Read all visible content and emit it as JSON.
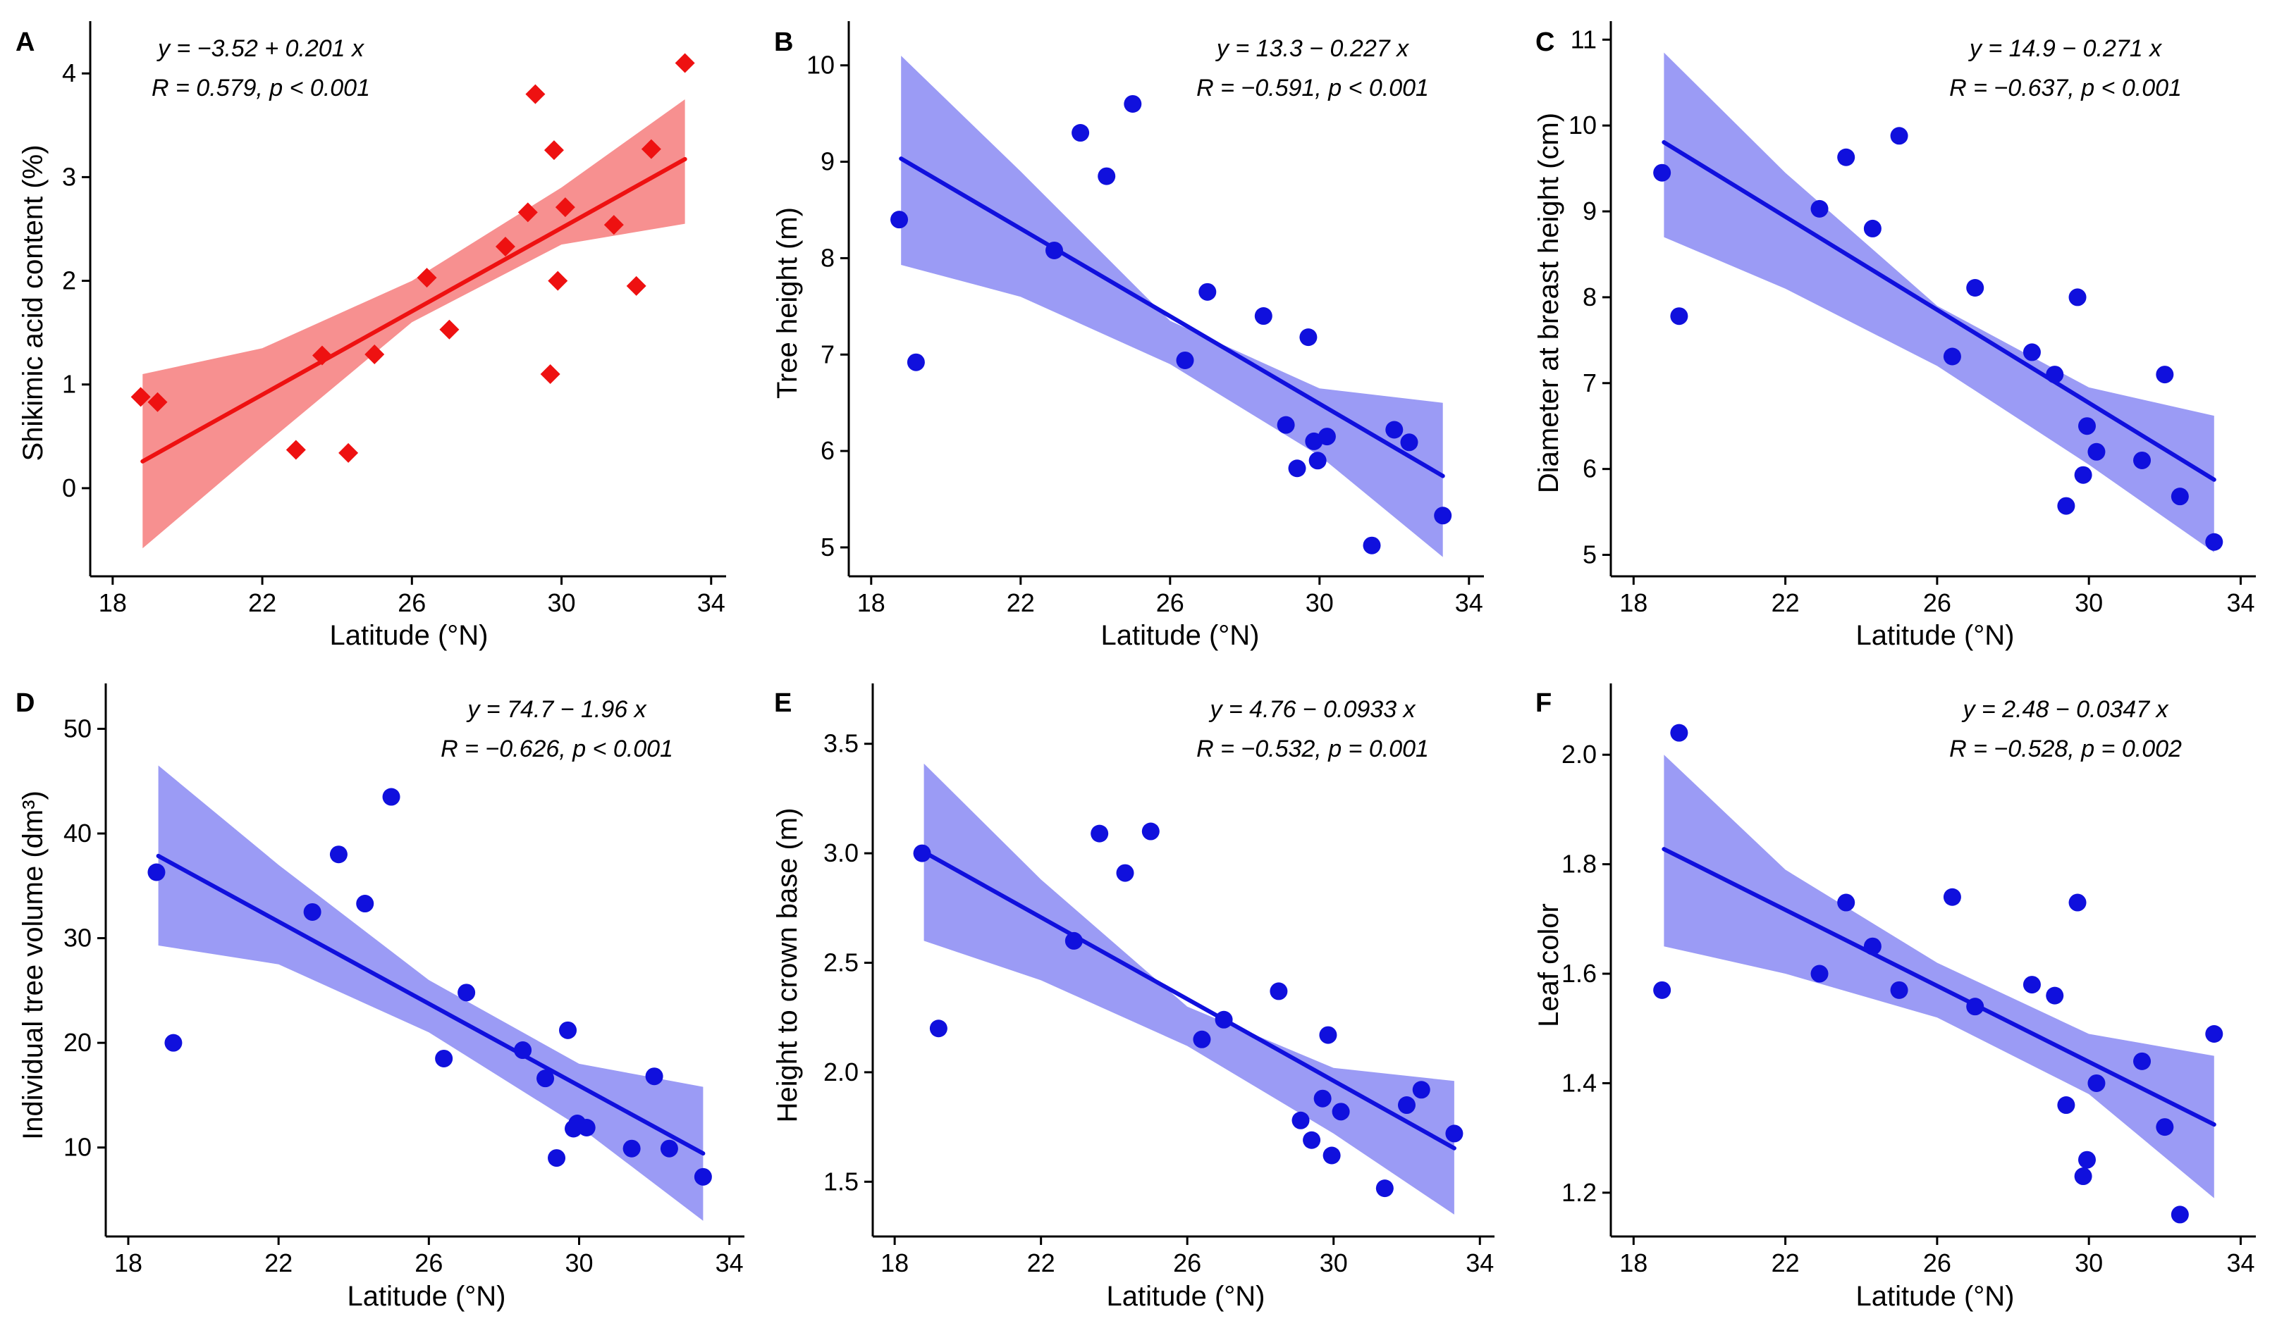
{
  "chart_data": [
    {
      "panel": "A",
      "type": "scatter",
      "xlabel": "Latitude (°N)",
      "ylabel": "Shikimic acid content (%)",
      "xlim": [
        17.4,
        34.4
      ],
      "ylim": [
        -0.85,
        4.45
      ],
      "xticks": [
        18,
        22,
        26,
        30,
        34
      ],
      "yticks": [
        0,
        1,
        2,
        3,
        4
      ],
      "point_shape": "diamond",
      "color": "#ee1111",
      "band_color": "#f79090",
      "fit": {
        "intercept": -3.52,
        "slope": 0.201
      },
      "ci_lower": [
        [
          18.8,
          -0.58
        ],
        [
          22,
          0.4
        ],
        [
          26,
          1.6
        ],
        [
          30,
          2.35
        ],
        [
          33.3,
          2.55
        ]
      ],
      "ci_upper": [
        [
          18.8,
          1.1
        ],
        [
          22,
          1.35
        ],
        [
          26,
          2.0
        ],
        [
          30,
          2.9
        ],
        [
          33.3,
          3.75
        ]
      ],
      "eq_line1": "y = −3.52 + 0.201 x",
      "eq_line2": "R = 0.579, p < 0.001",
      "points": [
        [
          18.75,
          0.88
        ],
        [
          19.2,
          0.83
        ],
        [
          22.9,
          0.37
        ],
        [
          23.6,
          1.28
        ],
        [
          24.3,
          0.34
        ],
        [
          25,
          1.29
        ],
        [
          26.4,
          2.03
        ],
        [
          27,
          1.53
        ],
        [
          28.5,
          2.33
        ],
        [
          29.1,
          2.66
        ],
        [
          29.3,
          3.8
        ],
        [
          29.7,
          1.1
        ],
        [
          29.8,
          3.26
        ],
        [
          29.9,
          2.0
        ],
        [
          30.1,
          2.71
        ],
        [
          31.4,
          2.54
        ],
        [
          32,
          1.95
        ],
        [
          32.4,
          3.27
        ],
        [
          33.3,
          4.1
        ]
      ]
    },
    {
      "panel": "B",
      "type": "scatter",
      "xlabel": "Latitude (°N)",
      "ylabel": "Tree height (m)",
      "xlim": [
        17.4,
        34.4
      ],
      "ylim": [
        4.7,
        10.4
      ],
      "xticks": [
        18,
        22,
        26,
        30,
        34
      ],
      "yticks": [
        5,
        6,
        7,
        8,
        9,
        10
      ],
      "point_shape": "circle",
      "color": "#1010dd",
      "band_color": "#9b9bf5",
      "fit": {
        "intercept": 13.3,
        "slope": -0.227
      },
      "ci_lower": [
        [
          18.8,
          7.93
        ],
        [
          22,
          7.6
        ],
        [
          26,
          6.9
        ],
        [
          30,
          5.95
        ],
        [
          33.3,
          4.9
        ]
      ],
      "ci_upper": [
        [
          18.8,
          10.1
        ],
        [
          22,
          8.9
        ],
        [
          26,
          7.35
        ],
        [
          30,
          6.65
        ],
        [
          33.3,
          6.5
        ]
      ],
      "eq_line1": "y = 13.3 − 0.227 x",
      "eq_line2": "R = −0.591, p < 0.001",
      "points": [
        [
          18.75,
          8.4
        ],
        [
          19.2,
          6.92
        ],
        [
          22.9,
          8.08
        ],
        [
          23.6,
          9.3
        ],
        [
          24.3,
          8.85
        ],
        [
          25,
          9.6
        ],
        [
          26.4,
          6.94
        ],
        [
          27,
          7.65
        ],
        [
          28.5,
          7.4
        ],
        [
          29.1,
          6.27
        ],
        [
          29.4,
          5.82
        ],
        [
          29.7,
          7.18
        ],
        [
          29.85,
          6.1
        ],
        [
          29.95,
          5.9
        ],
        [
          30.2,
          6.15
        ],
        [
          31.4,
          5.02
        ],
        [
          32,
          6.22
        ],
        [
          32.4,
          6.09
        ],
        [
          33.3,
          5.33
        ]
      ]
    },
    {
      "panel": "C",
      "type": "scatter",
      "xlabel": "Latitude (°N)",
      "ylabel": "Diameter at breast height (cm)",
      "xlim": [
        17.4,
        34.4
      ],
      "ylim": [
        4.75,
        11.15
      ],
      "xticks": [
        18,
        22,
        26,
        30,
        34
      ],
      "yticks": [
        5,
        6,
        7,
        8,
        9,
        10,
        11
      ],
      "point_shape": "circle",
      "color": "#1010dd",
      "band_color": "#9b9bf5",
      "fit": {
        "intercept": 14.9,
        "slope": -0.271
      },
      "ci_lower": [
        [
          18.8,
          8.7
        ],
        [
          22,
          8.1
        ],
        [
          26,
          7.2
        ],
        [
          30,
          6.05
        ],
        [
          33.3,
          5.03
        ]
      ],
      "ci_upper": [
        [
          18.8,
          10.85
        ],
        [
          22,
          9.45
        ],
        [
          26,
          7.9
        ],
        [
          30,
          6.95
        ],
        [
          33.3,
          6.62
        ]
      ],
      "eq_line1": "y = 14.9 − 0.271 x",
      "eq_line2": "R = −0.637, p < 0.001",
      "points": [
        [
          18.75,
          9.45
        ],
        [
          19.2,
          7.78
        ],
        [
          22.9,
          9.03
        ],
        [
          23.6,
          9.63
        ],
        [
          24.3,
          8.8
        ],
        [
          25,
          9.88
        ],
        [
          26.4,
          7.31
        ],
        [
          27,
          8.11
        ],
        [
          28.5,
          7.36
        ],
        [
          29.1,
          7.1
        ],
        [
          29.4,
          5.57
        ],
        [
          29.7,
          8.0
        ],
        [
          29.85,
          5.93
        ],
        [
          29.95,
          6.5
        ],
        [
          30.2,
          6.2
        ],
        [
          31.4,
          6.1
        ],
        [
          32,
          7.1
        ],
        [
          32.4,
          5.68
        ],
        [
          33.3,
          5.15
        ]
      ]
    },
    {
      "panel": "D",
      "type": "scatter",
      "xlabel": "Latitude (°N)",
      "ylabel": "Individual tree volume (dm³)",
      "xlim": [
        17.4,
        34.4
      ],
      "ylim": [
        1.5,
        53.8
      ],
      "xticks": [
        18,
        22,
        26,
        30,
        34
      ],
      "yticks": [
        10,
        20,
        30,
        40,
        50
      ],
      "point_shape": "circle",
      "color": "#1010dd",
      "band_color": "#9b9bf5",
      "fit": {
        "intercept": 74.7,
        "slope": -1.96
      },
      "ci_lower": [
        [
          18.8,
          29.3
        ],
        [
          22,
          27.5
        ],
        [
          26,
          21
        ],
        [
          30,
          12
        ],
        [
          33.3,
          3
        ]
      ],
      "ci_upper": [
        [
          18.8,
          46.5
        ],
        [
          22,
          37
        ],
        [
          26,
          26
        ],
        [
          30,
          18
        ],
        [
          33.3,
          15.8
        ]
      ],
      "eq_line1": "y = 74.7 − 1.96 x",
      "eq_line2": "R = −0.626, p < 0.001",
      "points": [
        [
          18.75,
          36.3
        ],
        [
          19.2,
          20.0
        ],
        [
          22.9,
          32.5
        ],
        [
          23.6,
          38.0
        ],
        [
          24.3,
          33.3
        ],
        [
          25,
          43.5
        ],
        [
          26.4,
          18.5
        ],
        [
          27,
          24.8
        ],
        [
          28.5,
          19.3
        ],
        [
          29.1,
          16.6
        ],
        [
          29.4,
          9.0
        ],
        [
          29.7,
          21.2
        ],
        [
          29.85,
          11.8
        ],
        [
          29.95,
          12.3
        ],
        [
          30.2,
          11.9
        ],
        [
          31.4,
          9.9
        ],
        [
          32,
          16.8
        ],
        [
          32.4,
          9.9
        ],
        [
          33.3,
          7.2
        ]
      ]
    },
    {
      "panel": "E",
      "type": "scatter",
      "xlabel": "Latitude (°N)",
      "ylabel": "Height to crown base (m)",
      "xlim": [
        17.4,
        34.4
      ],
      "ylim": [
        1.25,
        3.75
      ],
      "xticks": [
        18,
        22,
        26,
        30,
        34
      ],
      "yticks": [
        1.5,
        2.0,
        2.5,
        3.0,
        3.5
      ],
      "point_shape": "circle",
      "color": "#1010dd",
      "band_color": "#9b9bf5",
      "fit": {
        "intercept": 4.76,
        "slope": -0.0933
      },
      "ci_lower": [
        [
          18.8,
          2.6
        ],
        [
          22,
          2.42
        ],
        [
          26,
          2.12
        ],
        [
          30,
          1.72
        ],
        [
          33.3,
          1.35
        ]
      ],
      "ci_upper": [
        [
          18.8,
          3.41
        ],
        [
          22,
          2.88
        ],
        [
          26,
          2.3
        ],
        [
          30,
          2.02
        ],
        [
          33.3,
          1.96
        ]
      ],
      "eq_line1": "y = 4.76 − 0.0933 x",
      "eq_line2": "R = −0.532, p = 0.001",
      "points": [
        [
          18.75,
          3.0
        ],
        [
          19.2,
          2.2
        ],
        [
          22.9,
          2.6
        ],
        [
          23.6,
          3.09
        ],
        [
          24.3,
          2.91
        ],
        [
          25,
          3.1
        ],
        [
          26.4,
          2.15
        ],
        [
          27,
          2.24
        ],
        [
          28.5,
          2.37
        ],
        [
          29.1,
          1.78
        ],
        [
          29.4,
          1.69
        ],
        [
          29.7,
          1.88
        ],
        [
          29.85,
          2.17
        ],
        [
          29.95,
          1.62
        ],
        [
          30.2,
          1.82
        ],
        [
          31.4,
          1.47
        ],
        [
          32,
          1.85
        ],
        [
          32.4,
          1.92
        ],
        [
          33.3,
          1.72
        ]
      ]
    },
    {
      "panel": "F",
      "type": "scatter",
      "xlabel": "Latitude (°N)",
      "ylabel": "Leaf color",
      "xlim": [
        17.4,
        34.4
      ],
      "ylim": [
        1.12,
        2.12
      ],
      "xticks": [
        18,
        22,
        26,
        30,
        34
      ],
      "yticks": [
        1.2,
        1.4,
        1.6,
        1.8,
        2.0
      ],
      "point_shape": "circle",
      "color": "#1010dd",
      "band_color": "#9b9bf5",
      "fit": {
        "intercept": 2.48,
        "slope": -0.0347
      },
      "ci_lower": [
        [
          18.8,
          1.65
        ],
        [
          22,
          1.6
        ],
        [
          26,
          1.52
        ],
        [
          30,
          1.38
        ],
        [
          33.3,
          1.19
        ]
      ],
      "ci_upper": [
        [
          18.8,
          2.0
        ],
        [
          22,
          1.79
        ],
        [
          26,
          1.62
        ],
        [
          30,
          1.49
        ],
        [
          33.3,
          1.45
        ]
      ],
      "eq_line1": "y = 2.48 − 0.0347 x",
      "eq_line2": "R = −0.528, p = 0.002",
      "points": [
        [
          18.75,
          1.57
        ],
        [
          19.2,
          2.04
        ],
        [
          22.9,
          1.6
        ],
        [
          23.6,
          1.73
        ],
        [
          24.3,
          1.65
        ],
        [
          25,
          1.57
        ],
        [
          26.4,
          1.74
        ],
        [
          27,
          1.54
        ],
        [
          28.5,
          1.58
        ],
        [
          29.1,
          1.56
        ],
        [
          29.4,
          1.36
        ],
        [
          29.7,
          1.73
        ],
        [
          29.85,
          1.23
        ],
        [
          29.95,
          1.26
        ],
        [
          30.2,
          1.4
        ],
        [
          31.4,
          1.44
        ],
        [
          32,
          1.32
        ],
        [
          32.4,
          1.16
        ],
        [
          33.3,
          1.49
        ]
      ]
    }
  ]
}
